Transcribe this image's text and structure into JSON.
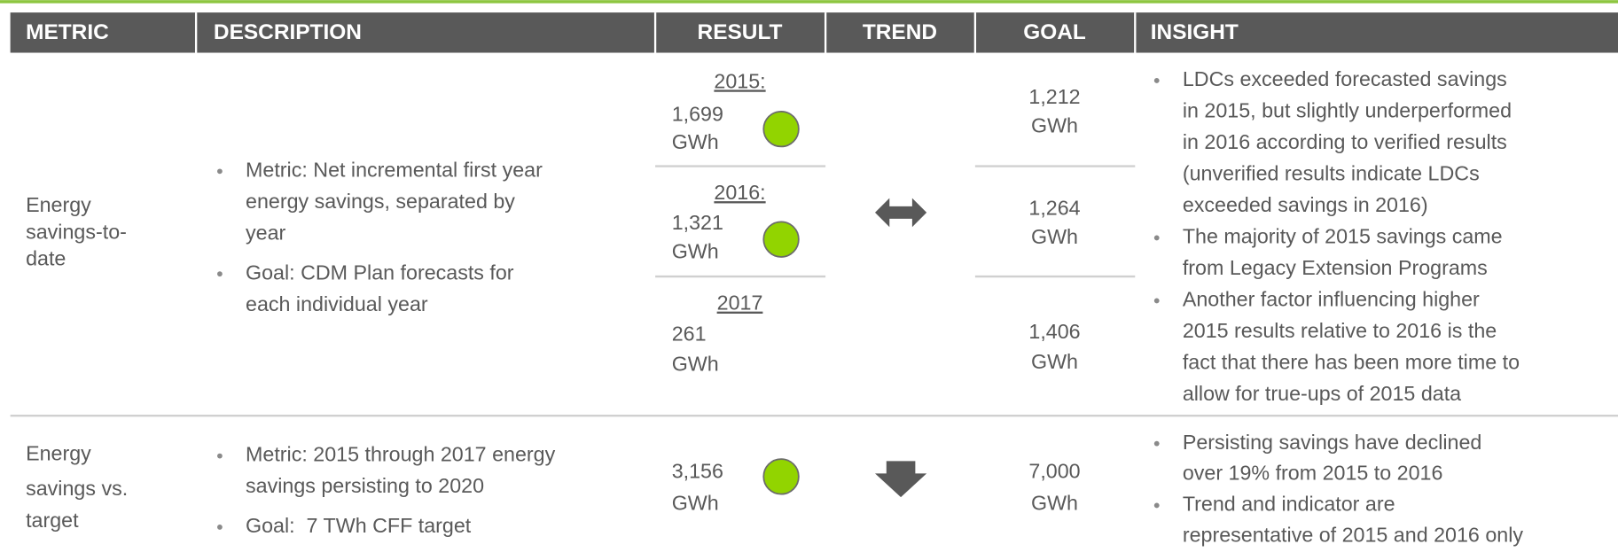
{
  "header": [
    "METRIC",
    "DESCRIPTION",
    "RESULT",
    "TREND",
    "GOAL",
    "INSIGHT"
  ],
  "rows": [
    {
      "metric": [
        "Energy",
        "savings-to-",
        "date"
      ],
      "description": [
        [
          "Metric: Net incremental first year",
          "energy savings, separated by",
          "year"
        ],
        [
          "Goal: CDM Plan forecasts for",
          "each individual year"
        ]
      ],
      "results": [
        {
          "year": "2015:",
          "value": "1,699",
          "unit": "GWh"
        },
        {
          "year": "2016:",
          "value": "1,321",
          "unit": "GWh"
        },
        {
          "year": "2017",
          "value": "261",
          "unit": "GWh"
        }
      ],
      "goals": [
        {
          "value": "1,212",
          "unit": "GWh"
        },
        {
          "value": "1,264",
          "unit": "GWh"
        },
        {
          "value": "1,406",
          "unit": "GWh"
        }
      ],
      "insight": [
        [
          "LDCs exceeded forecasted savings",
          "in 2015, but slightly underperformed",
          "in 2016 according to verified results",
          "(unverified results indicate LDCs",
          "exceeded savings in 2016)"
        ],
        [
          "The majority of 2015 savings came",
          "from Legacy Extension Programs"
        ],
        [
          "Another factor influencing higher",
          "2015 results relative to 2016 is the",
          "fact that there has been more time to",
          "allow for true-ups of 2015 data"
        ]
      ]
    },
    {
      "metric": [
        "Energy",
        "savings vs.",
        "target"
      ],
      "description": [
        [
          "Metric: 2015 through 2017 energy",
          "savings persisting to 2020"
        ],
        [
          "Goal:  7 TWh CFF target"
        ]
      ],
      "results": [
        {
          "value": "3,156",
          "unit": "GWh"
        }
      ],
      "goals": [
        {
          "value": "7,000",
          "unit": "GWh"
        }
      ],
      "insight": [
        [
          "Persisting savings have declined",
          "over 19% from 2015 to 2016"
        ],
        [
          "Trend and indicator are",
          "representative of 2015 and 2016 only"
        ]
      ]
    }
  ]
}
